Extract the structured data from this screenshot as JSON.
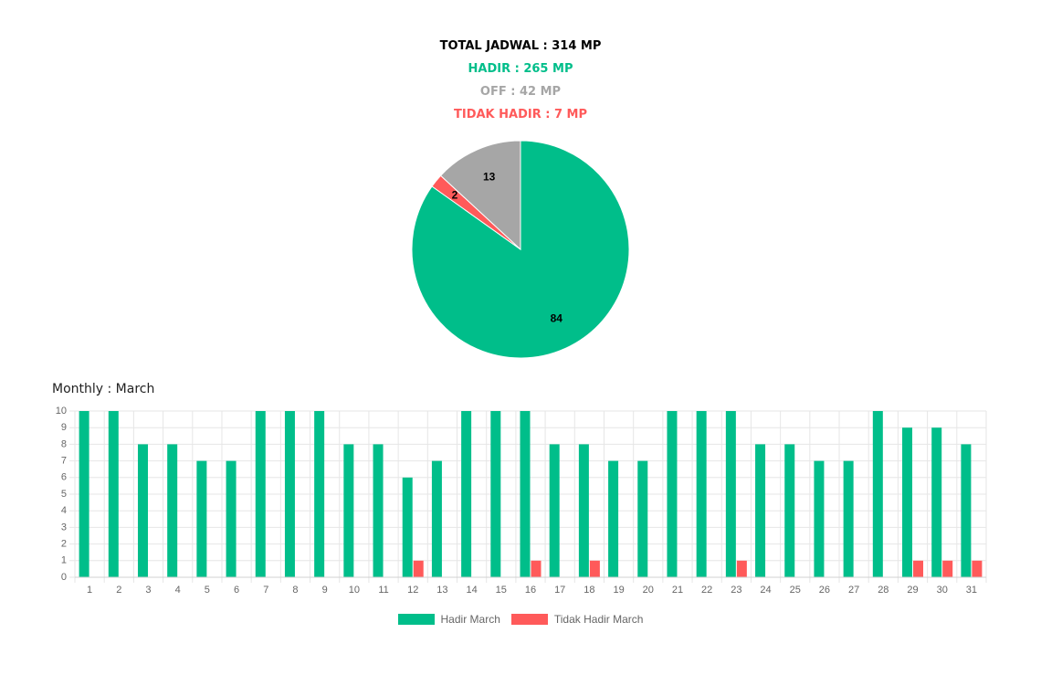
{
  "summary": {
    "total": "TOTAL JADWAL : 314 MP",
    "hadir": "HADIR : 265 MP",
    "off": "OFF : 42 MP",
    "tidak_hadir": "TIDAK HADIR : 7 MP"
  },
  "colors": {
    "hadir": "#00be8a",
    "off": "#a6a6a6",
    "tidak_hadir": "#ff5a5a",
    "grid": "#e6e6e6",
    "axis_text": "#666666"
  },
  "monthly_title": "Monthly : March",
  "chart_data": [
    {
      "type": "pie",
      "labels": [
        "",
        "",
        ""
      ],
      "values": [
        84,
        2,
        13
      ],
      "data_labels": [
        "84",
        "2",
        "13"
      ],
      "slice_colors": [
        "#00be8a",
        "#ff5a5a",
        "#a6a6a6"
      ]
    },
    {
      "type": "bar",
      "categories": [
        "1",
        "2",
        "3",
        "4",
        "5",
        "6",
        "7",
        "8",
        "9",
        "10",
        "11",
        "12",
        "13",
        "14",
        "15",
        "16",
        "17",
        "18",
        "19",
        "20",
        "21",
        "22",
        "23",
        "24",
        "25",
        "26",
        "27",
        "28",
        "29",
        "30",
        "31"
      ],
      "series": [
        {
          "name": "Hadir March",
          "color": "#00be8a",
          "values": [
            10,
            10,
            8,
            8,
            7,
            7,
            10,
            10,
            10,
            8,
            8,
            6,
            7,
            10,
            10,
            10,
            8,
            8,
            7,
            7,
            10,
            10,
            10,
            8,
            8,
            7,
            7,
            10,
            9,
            9,
            8
          ]
        },
        {
          "name": "Tidak Hadir March",
          "color": "#ff5a5a",
          "values": [
            0,
            0,
            0,
            0,
            0,
            0,
            0,
            0,
            0,
            0,
            0,
            1,
            0,
            0,
            0,
            1,
            0,
            1,
            0,
            0,
            0,
            0,
            1,
            0,
            0,
            0,
            0,
            0,
            1,
            1,
            1
          ]
        }
      ],
      "ylim": [
        0,
        10
      ],
      "yticks": [
        0,
        1,
        2,
        3,
        4,
        5,
        6,
        7,
        8,
        9,
        10
      ],
      "grid": true,
      "legend": "bottom"
    }
  ]
}
